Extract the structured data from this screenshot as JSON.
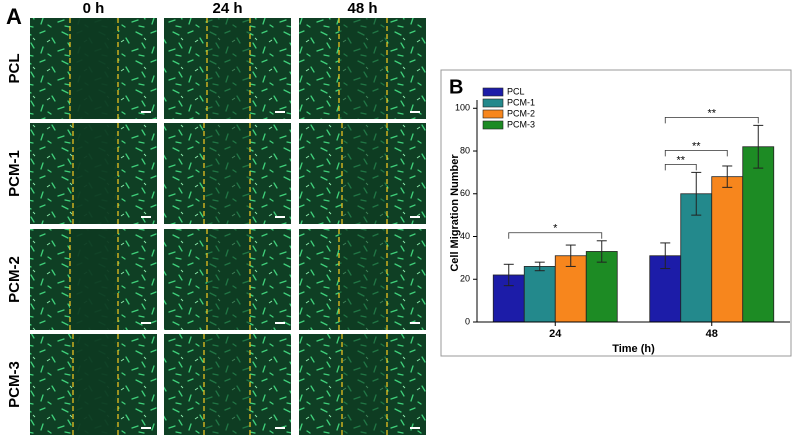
{
  "panel_a": {
    "label": "A",
    "columns": [
      "0 h",
      "24 h",
      "48 h"
    ],
    "rows": [
      "PCL",
      "PCM-1",
      "PCM-2",
      "PCM-3"
    ]
  },
  "chart_data": {
    "type": "bar",
    "label": "B",
    "xlabel": "Time (h)",
    "ylabel": "Cell Migration Number",
    "categories": [
      "24",
      "48"
    ],
    "series": [
      {
        "name": "PCL",
        "color": "#1c1ca8",
        "values": [
          22,
          31
        ],
        "errors": [
          5,
          6
        ]
      },
      {
        "name": "PCM-1",
        "color": "#23898c",
        "values": [
          26,
          60
        ],
        "errors": [
          2,
          10
        ]
      },
      {
        "name": "PCM-2",
        "color": "#f7861d",
        "values": [
          31,
          68
        ],
        "errors": [
          5,
          5
        ]
      },
      {
        "name": "PCM-3",
        "color": "#1d8b24",
        "values": [
          33,
          82
        ],
        "errors": [
          5,
          10
        ]
      }
    ],
    "ylim": [
      0,
      102
    ],
    "yticks": [
      0,
      20,
      40,
      60,
      80,
      100
    ],
    "legend": "upper left",
    "annotations": [
      {
        "text": "*",
        "category": "24",
        "series": [
          "PCL",
          "PCM-3"
        ]
      },
      {
        "text": "**",
        "category": "48",
        "series": [
          "PCL",
          "PCM-1"
        ]
      },
      {
        "text": "**",
        "category": "48",
        "series": [
          "PCL",
          "PCM-2"
        ]
      },
      {
        "text": "**",
        "category": "48",
        "series": [
          "PCL",
          "PCM-3"
        ]
      }
    ]
  }
}
